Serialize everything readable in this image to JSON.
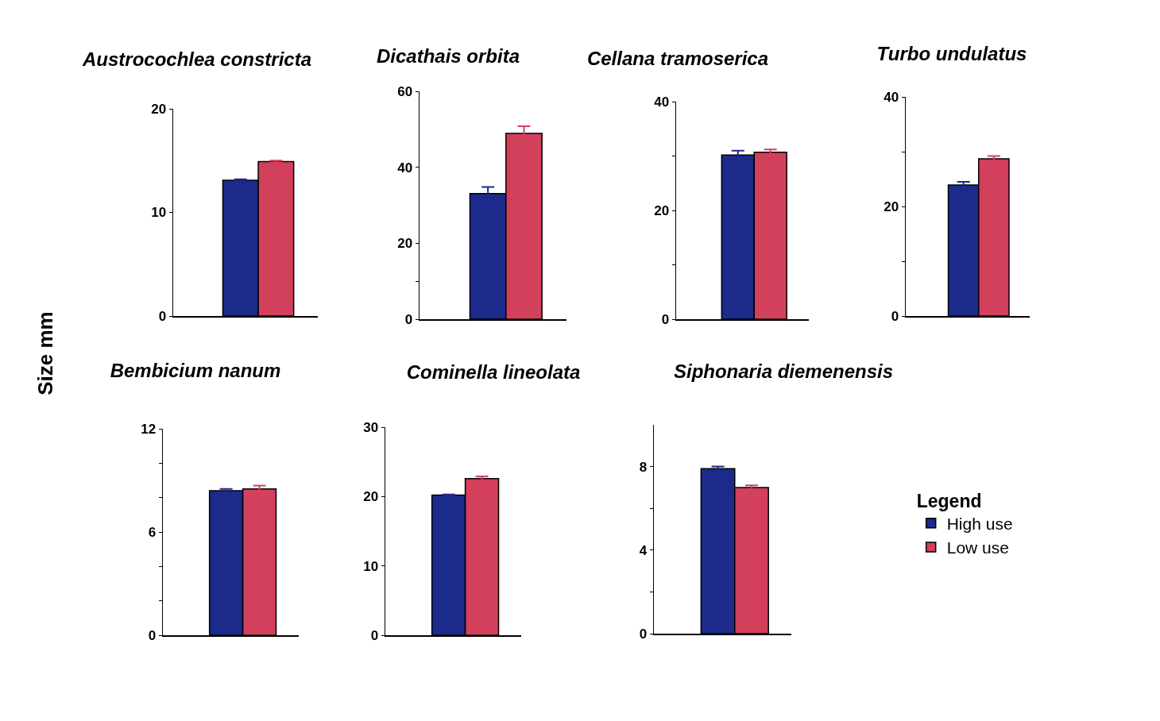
{
  "chart_data": [
    {
      "type": "bar",
      "title": "Austrocochlea constricta",
      "ylabel": "Size mm",
      "categories": [
        null
      ],
      "tick_labels": "y",
      "legend": false,
      "ylim": [
        0,
        20
      ],
      "yticks": [
        0,
        10,
        20
      ],
      "series": [
        {
          "color": "#1c2a8c",
          "values": [
            13.1
          ],
          "errors": [
            0.1
          ]
        },
        {
          "color": "#d2405c",
          "values": [
            14.9
          ],
          "errors": [
            0.1
          ]
        }
      ]
    },
    {
      "type": "bar",
      "title": "Dicathais orbita",
      "categories": [
        null
      ],
      "tick_labels": "y",
      "legend": false,
      "ylim": [
        0,
        60
      ],
      "yticks": [
        0,
        {
          "value": 10,
          "label": null
        },
        20,
        40,
        60
      ],
      "series": [
        {
          "color": "#1c2a8c",
          "values": [
            33.1
          ],
          "errors": [
            1.7
          ]
        },
        {
          "color": "#d2405c",
          "values": [
            48.9
          ],
          "errors": [
            1.9
          ]
        }
      ]
    },
    {
      "type": "bar",
      "title": "Cellana tramoserica",
      "categories": [
        null
      ],
      "tick_labels": "y",
      "legend": false,
      "ylim": [
        0,
        40
      ],
      "yticks": [
        0,
        {
          "value": 10,
          "label": null
        },
        20,
        {
          "value": 30,
          "label": null
        },
        40
      ],
      "series": [
        {
          "color": "#1c2a8c",
          "values": [
            30.2
          ],
          "errors": [
            0.8
          ]
        },
        {
          "color": "#d2405c",
          "values": [
            30.7
          ],
          "errors": [
            0.5
          ]
        }
      ]
    },
    {
      "type": "bar",
      "title": "Turbo undulatus",
      "categories": [
        null
      ],
      "tick_labels": "y",
      "legend": false,
      "ylim": [
        0,
        40
      ],
      "yticks": [
        0,
        {
          "value": 10,
          "label": null
        },
        20,
        {
          "value": 30,
          "label": null
        },
        40
      ],
      "series": [
        {
          "color": "#1c2a8c",
          "values": [
            23.9
          ],
          "errors": [
            0.6
          ]
        },
        {
          "color": "#d2405c",
          "values": [
            28.7
          ],
          "errors": [
            0.5
          ]
        }
      ]
    },
    {
      "type": "bar",
      "title": "Bembicium nanum",
      "categories": [
        null
      ],
      "tick_labels": "y",
      "legend": false,
      "ylim": [
        0,
        12
      ],
      "yticks": [
        0,
        {
          "value": 2,
          "label": null
        },
        {
          "value": 4,
          "label": null
        },
        6,
        {
          "value": 8,
          "label": null
        },
        {
          "value": 10,
          "label": null
        },
        12
      ],
      "series": [
        {
          "color": "#1c2a8c",
          "values": [
            8.4
          ],
          "errors": [
            0.1
          ]
        },
        {
          "color": "#d2405c",
          "values": [
            8.5
          ],
          "errors": [
            0.2
          ]
        }
      ]
    },
    {
      "type": "bar",
      "title": "Cominella lineolata",
      "categories": [
        null
      ],
      "tick_labels": "y",
      "legend": false,
      "ylim": [
        0,
        30
      ],
      "yticks": [
        0,
        10,
        20,
        30
      ],
      "series": [
        {
          "color": "#1c2a8c",
          "values": [
            20.2
          ],
          "errors": [
            0.1
          ]
        },
        {
          "color": "#d2405c",
          "values": [
            22.6
          ],
          "errors": [
            0.3
          ]
        }
      ]
    },
    {
      "type": "bar",
      "title": "Siphonaria diemenensis",
      "categories": [
        null
      ],
      "tick_labels": "y",
      "legend": "right",
      "legend_title": "Legend",
      "ylim": [
        0,
        10
      ],
      "yticks": [
        0,
        {
          "value": 2,
          "label": null
        },
        4,
        {
          "value": 6,
          "label": null
        },
        8
      ],
      "series": [
        {
          "name": "High use",
          "color": "#1c2a8c",
          "values": [
            7.9
          ],
          "errors": [
            0.1
          ]
        },
        {
          "name": "Low use",
          "color": "#d2405c",
          "values": [
            7.0
          ],
          "errors": [
            0.1
          ]
        }
      ]
    }
  ]
}
